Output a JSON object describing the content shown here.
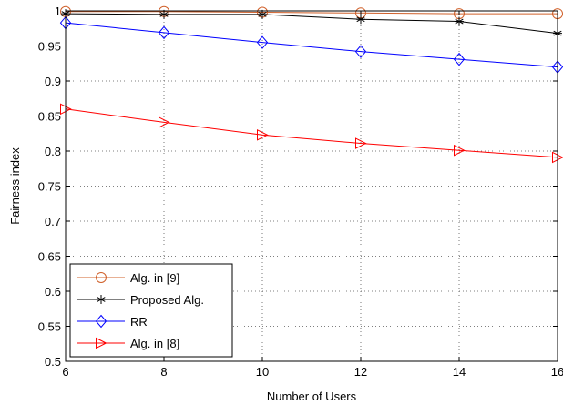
{
  "chart_data": {
    "type": "line",
    "xlabel": "Number of Users",
    "ylabel": "Fairness index",
    "x": [
      6,
      8,
      10,
      12,
      14,
      16
    ],
    "xlim": [
      6,
      16
    ],
    "ylim": [
      0.5,
      1
    ],
    "xticks": [
      "6",
      "8",
      "10",
      "12",
      "14",
      "16"
    ],
    "yticks": [
      "0.5",
      "0.55",
      "0.6",
      "0.65",
      "0.7",
      "0.75",
      "0.8",
      "0.85",
      "0.9",
      "0.95",
      "1"
    ],
    "grid": true,
    "legend_position": "bottom-left",
    "series": [
      {
        "name": "Alg. in [9]",
        "color": "#d0602a",
        "marker": "circle",
        "values": [
          0.999,
          0.999,
          0.998,
          0.997,
          0.996,
          0.996
        ]
      },
      {
        "name": "Proposed Alg.",
        "color": "#000000",
        "marker": "star",
        "values": [
          0.996,
          0.995,
          0.995,
          0.988,
          0.985,
          0.968
        ]
      },
      {
        "name": "RR",
        "color": "#0000ff",
        "marker": "diamond",
        "values": [
          0.983,
          0.969,
          0.955,
          0.942,
          0.931,
          0.92
        ]
      },
      {
        "name": "Alg. in [8]",
        "color": "#ff0000",
        "marker": "triangle-right",
        "values": [
          0.86,
          0.841,
          0.823,
          0.811,
          0.801,
          0.791
        ]
      }
    ]
  }
}
